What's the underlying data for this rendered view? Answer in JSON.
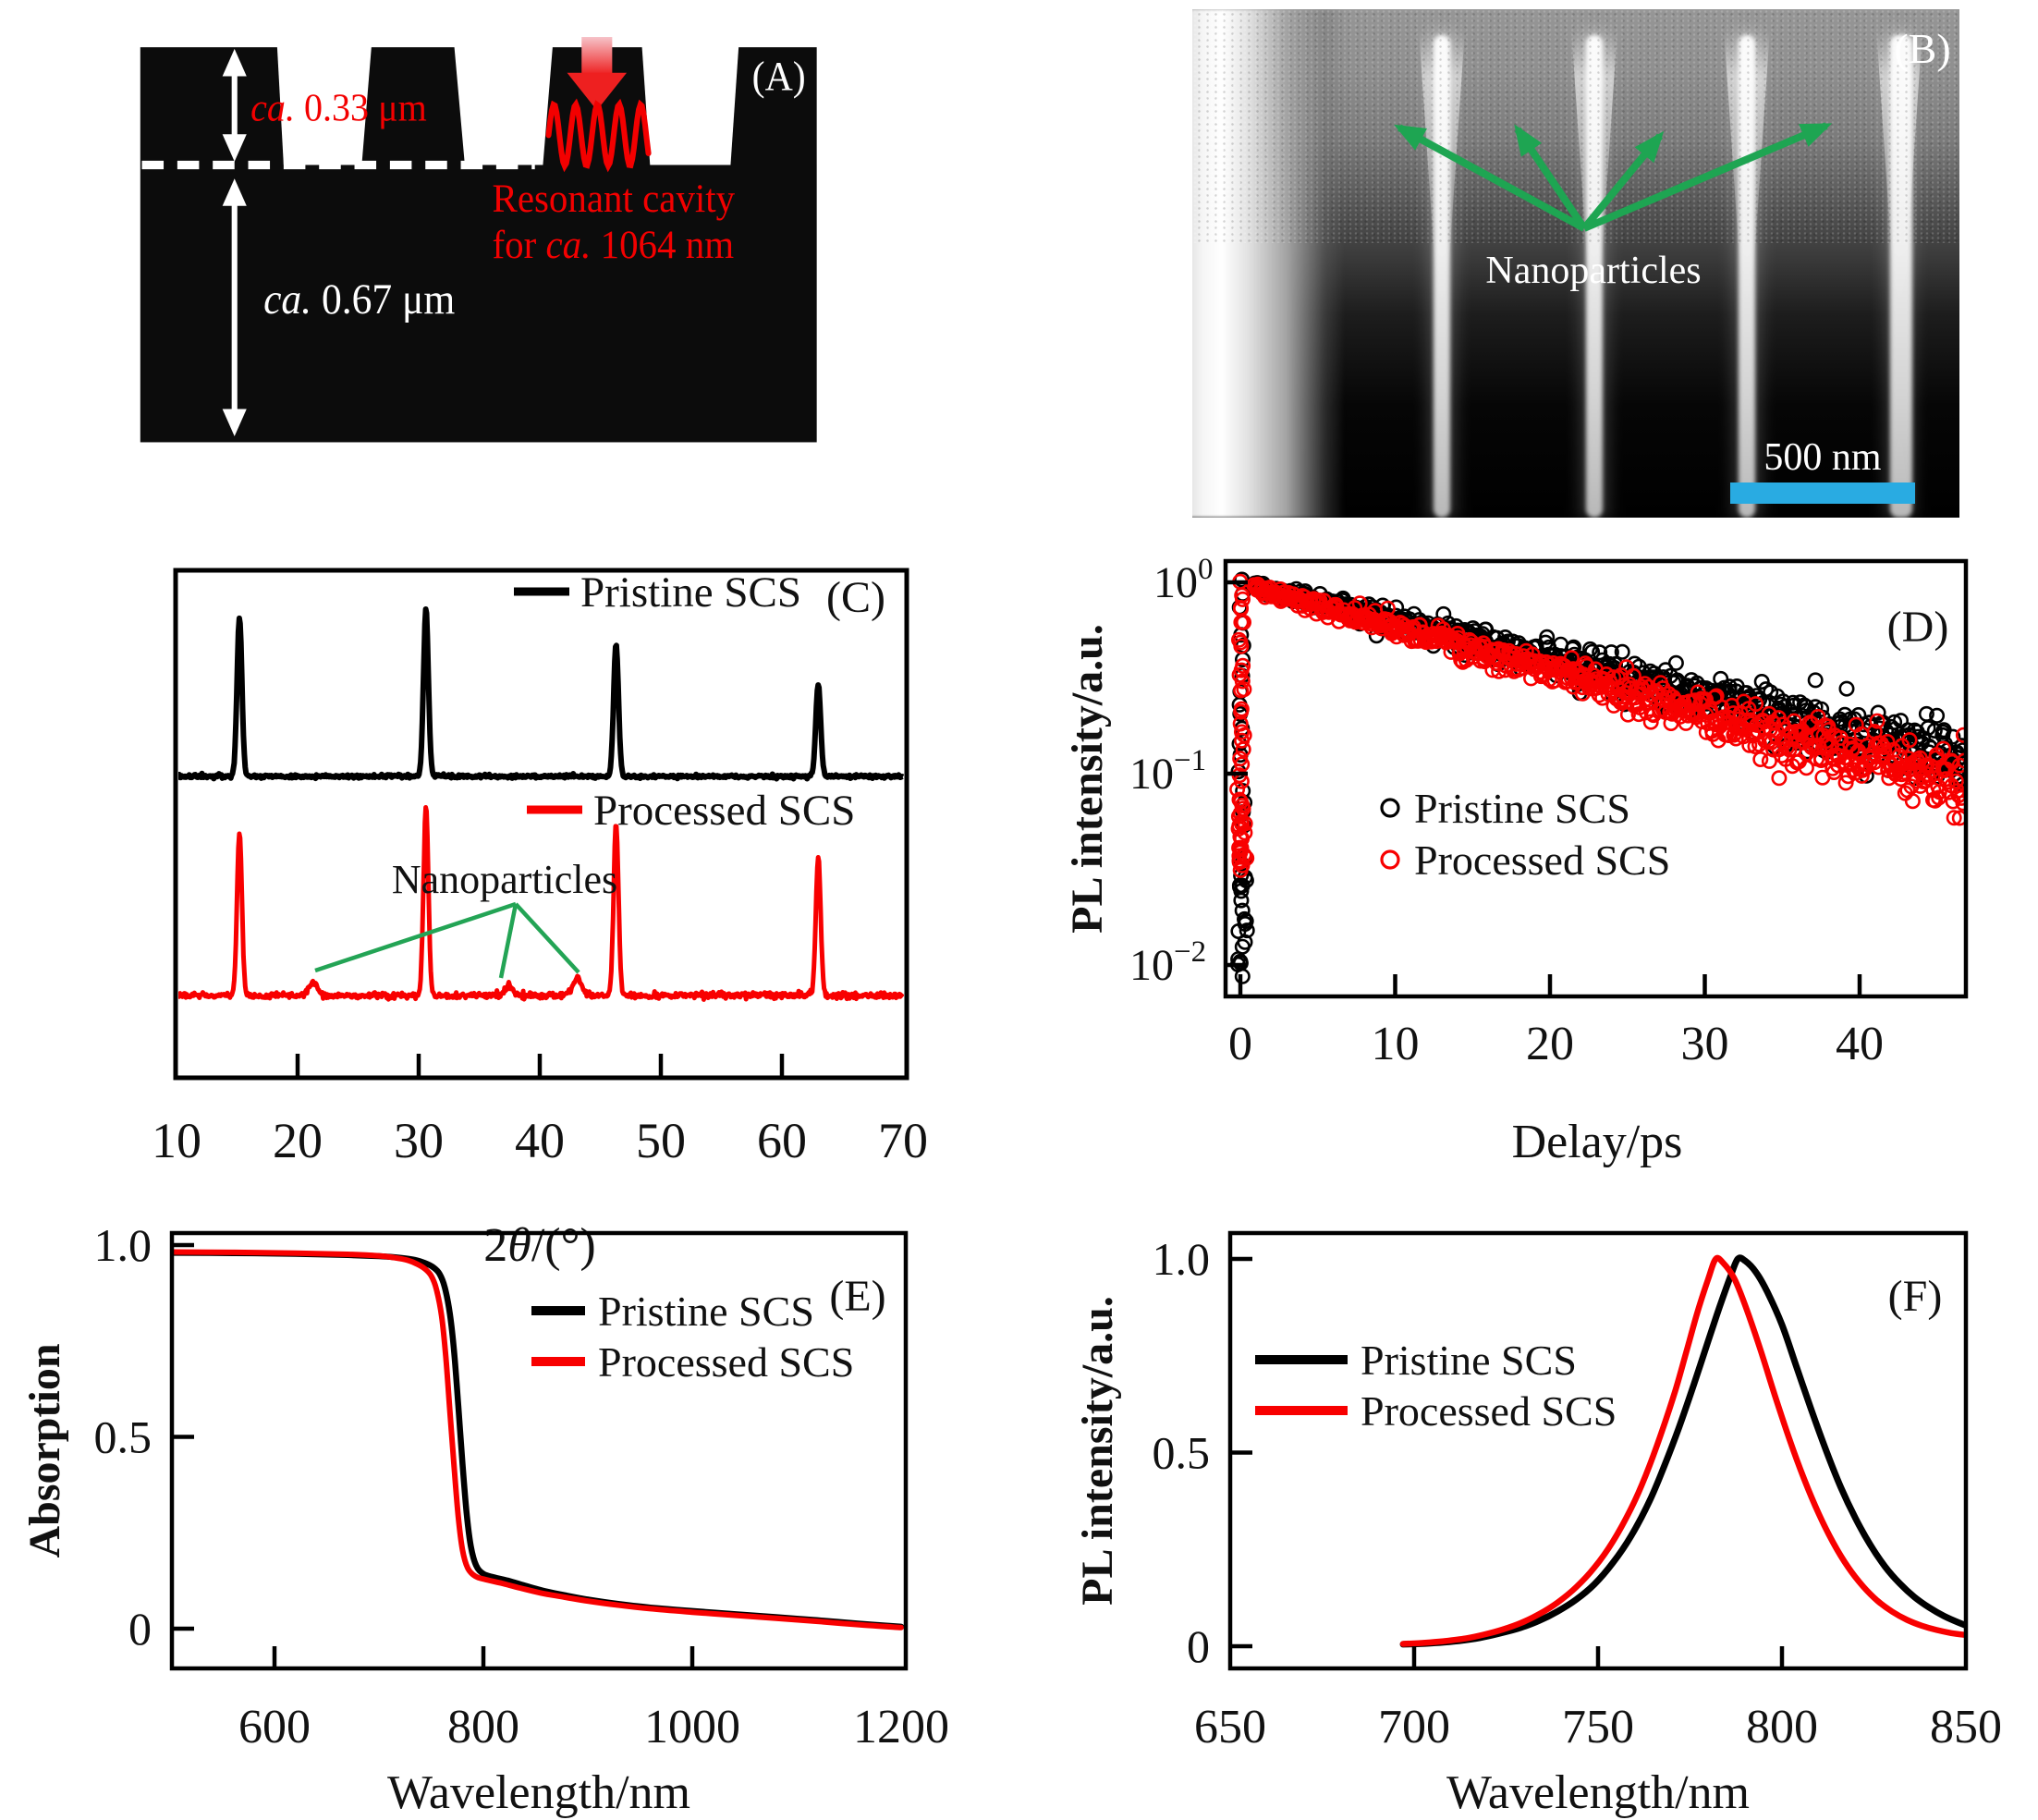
{
  "figure_accents": {
    "red": "#f30000",
    "black": "#111111",
    "green": "#1ea552"
  },
  "panel_a": {
    "tag": "(A)",
    "dim_top_italic": "ca.",
    "dim_top_text": " 0.33 μm",
    "dim_bottom_italic": "ca.",
    "dim_bottom_text": " 0.67 μm",
    "cavity_line1": "Resonant cavity",
    "cavity_for": "for ",
    "cavity_italic": "ca.",
    "cavity_rest": " 1064 nm"
  },
  "panel_b": {
    "tag": "(B)",
    "annotation": "Nanoparticles",
    "scale_label": "500 nm",
    "scalebar_color": "#29abe2",
    "arrow_green": "#1ea552"
  },
  "chart_data": [
    {
      "id": "C",
      "type": "line",
      "panel_tag": "(C)",
      "xlabel_parts": {
        "pre": "2",
        "italic": "θ",
        "post": "/(°)"
      },
      "xlim": [
        10,
        70
      ],
      "xtick_labels": [
        10,
        20,
        30,
        40,
        50,
        60,
        70
      ],
      "inner_ticks": [
        20,
        30,
        40,
        50,
        60
      ],
      "annotation": {
        "text": "Nanoparticles",
        "targets_2theta": [
          21.3,
          37.4,
          43.1
        ]
      },
      "series": [
        {
          "name": "Pristine SCS",
          "color": "#000000",
          "trace": "top",
          "peaks": [
            {
              "two_theta": 15.2,
              "rel_intensity": 0.95
            },
            {
              "two_theta": 30.6,
              "rel_intensity": 1.0
            },
            {
              "two_theta": 46.3,
              "rel_intensity": 0.79
            },
            {
              "two_theta": 63.0,
              "rel_intensity": 0.55
            }
          ]
        },
        {
          "name": "Processed SCS",
          "color": "#f80000",
          "trace": "bottom",
          "peaks": [
            {
              "two_theta": 15.2,
              "rel_intensity": 0.86
            },
            {
              "two_theta": 21.3,
              "rel_intensity": 0.07
            },
            {
              "two_theta": 30.6,
              "rel_intensity": 1.0
            },
            {
              "two_theta": 37.4,
              "rel_intensity": 0.05
            },
            {
              "two_theta": 43.1,
              "rel_intensity": 0.09
            },
            {
              "two_theta": 46.3,
              "rel_intensity": 0.91
            },
            {
              "two_theta": 63.0,
              "rel_intensity": 0.73
            }
          ]
        }
      ]
    },
    {
      "id": "D",
      "type": "scatter",
      "panel_tag": "(D)",
      "xlabel": "Delay/ps",
      "ylabel": "PL intensity/a.u.",
      "xlim": [
        -1,
        47
      ],
      "xticks": [
        0,
        10,
        20,
        30,
        40
      ],
      "yscale": "log",
      "ytick_exponents": [
        0,
        -1,
        -2
      ],
      "series": [
        {
          "name": "Pristine SCS",
          "color": "#000000",
          "marker": "open-circle",
          "rise_log10_range": [
            -2.05,
            0
          ],
          "decay_rate_log10_per_ps": 0.02,
          "trend_log10": [
            [
              1,
              0
            ],
            [
              10,
              -0.18
            ],
            [
              20,
              -0.38
            ],
            [
              30,
              -0.58
            ],
            [
              40,
              -0.78
            ],
            [
              46.8,
              -0.92
            ]
          ]
        },
        {
          "name": "Processed SCS",
          "color": "#f80000",
          "marker": "open-circle",
          "rise_log10_range": [
            -1.5,
            0
          ],
          "decay_rate_log10_per_ps": 0.0226,
          "trend_log10": [
            [
              1,
              -0.01
            ],
            [
              10,
              -0.24
            ],
            [
              20,
              -0.47
            ],
            [
              30,
              -0.69
            ],
            [
              40,
              -0.92
            ],
            [
              46.8,
              -1.07
            ]
          ]
        }
      ]
    },
    {
      "id": "E",
      "type": "line",
      "panel_tag": "(E)",
      "xlabel": "Wavelength/nm",
      "ylabel": "Absorption",
      "xlim": [
        500,
        1205
      ],
      "xtick_labels": [
        600,
        800,
        1000,
        1200
      ],
      "inner_ticks": [
        600,
        800,
        1000
      ],
      "yticks": [
        0,
        0.5,
        1.0
      ],
      "series": [
        {
          "name": "Pristine SCS",
          "color": "#000000",
          "points": [
            [
              500,
              0.98
            ],
            [
              560,
              0.979
            ],
            [
              620,
              0.977
            ],
            [
              670,
              0.974
            ],
            [
              700,
              0.971
            ],
            [
              720,
              0.967
            ],
            [
              735,
              0.961
            ],
            [
              745,
              0.952
            ],
            [
              752,
              0.942
            ],
            [
              758,
              0.925
            ],
            [
              763,
              0.89
            ],
            [
              768,
              0.82
            ],
            [
              772,
              0.72
            ],
            [
              776,
              0.58
            ],
            [
              780,
              0.43
            ],
            [
              784,
              0.3
            ],
            [
              788,
              0.215
            ],
            [
              793,
              0.165
            ],
            [
              800,
              0.143
            ],
            [
              810,
              0.134
            ],
            [
              825,
              0.124
            ],
            [
              840,
              0.112
            ],
            [
              860,
              0.097
            ],
            [
              880,
              0.086
            ],
            [
              900,
              0.076
            ],
            [
              930,
              0.064
            ],
            [
              960,
              0.055
            ],
            [
              1000,
              0.046
            ],
            [
              1040,
              0.038
            ],
            [
              1080,
              0.03
            ],
            [
              1120,
              0.022
            ],
            [
              1160,
              0.013
            ],
            [
              1200,
              0.005
            ]
          ]
        },
        {
          "name": "Processed SCS",
          "color": "#f80000",
          "points": [
            [
              500,
              0.982
            ],
            [
              560,
              0.981
            ],
            [
              620,
              0.979
            ],
            [
              670,
              0.976
            ],
            [
              700,
              0.972
            ],
            [
              715,
              0.967
            ],
            [
              728,
              0.96
            ],
            [
              737,
              0.95
            ],
            [
              744,
              0.938
            ],
            [
              750,
              0.92
            ],
            [
              755,
              0.885
            ],
            [
              760,
              0.815
            ],
            [
              764,
              0.71
            ],
            [
              768,
              0.565
            ],
            [
              772,
              0.42
            ],
            [
              776,
              0.29
            ],
            [
              780,
              0.205
            ],
            [
              785,
              0.158
            ],
            [
              792,
              0.137
            ],
            [
              802,
              0.128
            ],
            [
              818,
              0.118
            ],
            [
              835,
              0.106
            ],
            [
              855,
              0.093
            ],
            [
              878,
              0.082
            ],
            [
              900,
              0.072
            ],
            [
              930,
              0.061
            ],
            [
              960,
              0.052
            ],
            [
              1000,
              0.043
            ],
            [
              1040,
              0.035
            ],
            [
              1080,
              0.027
            ],
            [
              1120,
              0.019
            ],
            [
              1160,
              0.01
            ],
            [
              1200,
              0.003
            ]
          ]
        }
      ]
    },
    {
      "id": "F",
      "type": "line",
      "panel_tag": "(F)",
      "xlabel": "Wavelength/nm",
      "ylabel": "PL intensity/a.u.",
      "xlim": [
        650,
        850
      ],
      "xtick_labels": [
        650,
        700,
        750,
        800,
        850
      ],
      "inner_ticks": [
        700,
        750,
        800
      ],
      "yticks": [
        0,
        0.5,
        1.0
      ],
      "series": [
        {
          "name": "Pristine SCS",
          "color": "#000000",
          "peak_nm": 787,
          "points": [
            [
              697,
              0.005
            ],
            [
              703,
              0.007
            ],
            [
              708,
              0.01
            ],
            [
              714,
              0.016
            ],
            [
              719,
              0.024
            ],
            [
              724,
              0.035
            ],
            [
              729,
              0.048
            ],
            [
              734,
              0.066
            ],
            [
              739,
              0.09
            ],
            [
              744,
              0.12
            ],
            [
              749,
              0.16
            ],
            [
              754,
              0.215
            ],
            [
              759,
              0.285
            ],
            [
              764,
              0.375
            ],
            [
              768,
              0.465
            ],
            [
              772,
              0.565
            ],
            [
              776,
              0.675
            ],
            [
              780,
              0.79
            ],
            [
              783,
              0.875
            ],
            [
              786,
              0.955
            ],
            [
              788,
              1.0
            ],
            [
              790,
              0.995
            ],
            [
              793,
              0.965
            ],
            [
              796,
              0.915
            ],
            [
              800,
              0.83
            ],
            [
              804,
              0.72
            ],
            [
              808,
              0.61
            ],
            [
              812,
              0.505
            ],
            [
              816,
              0.41
            ],
            [
              820,
              0.33
            ],
            [
              824,
              0.262
            ],
            [
              828,
              0.206
            ],
            [
              832,
              0.162
            ],
            [
              836,
              0.127
            ],
            [
              840,
              0.1
            ],
            [
              844,
              0.078
            ],
            [
              848,
              0.061
            ],
            [
              850,
              0.054
            ]
          ]
        },
        {
          "name": "Processed SCS",
          "color": "#f80000",
          "peak_nm": 781,
          "points": [
            [
              697,
              0.006
            ],
            [
              703,
              0.009
            ],
            [
              708,
              0.013
            ],
            [
              714,
              0.02
            ],
            [
              719,
              0.03
            ],
            [
              724,
              0.043
            ],
            [
              729,
              0.06
            ],
            [
              734,
              0.083
            ],
            [
              739,
              0.113
            ],
            [
              744,
              0.152
            ],
            [
              749,
              0.203
            ],
            [
              754,
              0.27
            ],
            [
              759,
              0.356
            ],
            [
              763,
              0.442
            ],
            [
              767,
              0.545
            ],
            [
              771,
              0.66
            ],
            [
              774,
              0.76
            ],
            [
              777,
              0.862
            ],
            [
              780,
              0.95
            ],
            [
              782,
              1.0
            ],
            [
              784,
              0.99
            ],
            [
              787,
              0.95
            ],
            [
              790,
              0.88
            ],
            [
              794,
              0.77
            ],
            [
              798,
              0.65
            ],
            [
              802,
              0.535
            ],
            [
              806,
              0.432
            ],
            [
              810,
              0.342
            ],
            [
              814,
              0.266
            ],
            [
              818,
              0.204
            ],
            [
              822,
              0.155
            ],
            [
              826,
              0.117
            ],
            [
              830,
              0.089
            ],
            [
              834,
              0.068
            ],
            [
              838,
              0.053
            ],
            [
              842,
              0.042
            ],
            [
              846,
              0.034
            ],
            [
              850,
              0.029
            ]
          ]
        }
      ]
    }
  ]
}
